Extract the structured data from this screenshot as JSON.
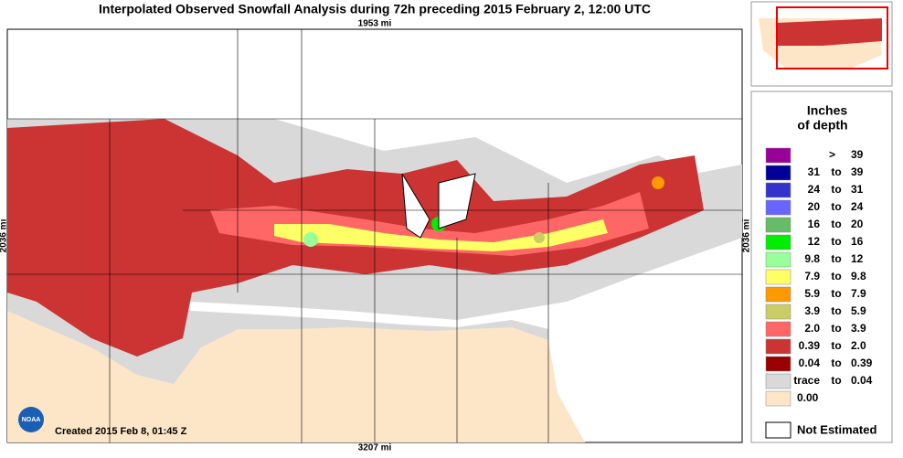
{
  "header": {
    "title": "Interpolated Observed Snowfall Analysis during 72h preceding 2015 February 2, 12:00 UTC"
  },
  "map": {
    "top_scale": "1953 mi",
    "side_scale": "2036 mi",
    "bottom_scale": "3207 mi",
    "created": "Created 2015 Feb 8, 01:45 Z",
    "logo": "NOAA"
  },
  "legend": {
    "title": [
      "Inches",
      "of depth"
    ],
    "items": [
      {
        "color": "#990099",
        "parts": [
          ">",
          "39"
        ]
      },
      {
        "color": "#000099",
        "parts": [
          "31",
          "to",
          "39"
        ]
      },
      {
        "color": "#3333cc",
        "parts": [
          "24",
          "to",
          "31"
        ]
      },
      {
        "color": "#6666ff",
        "parts": [
          "20",
          "to",
          "24"
        ]
      },
      {
        "color": "#66bb66",
        "parts": [
          "16",
          "to",
          "20"
        ]
      },
      {
        "color": "#00ee00",
        "parts": [
          "12",
          "to",
          "16"
        ]
      },
      {
        "color": "#99ff99",
        "parts": [
          "9.8",
          "to",
          "12"
        ]
      },
      {
        "color": "#ffff66",
        "parts": [
          "7.9",
          "to",
          "9.8"
        ]
      },
      {
        "color": "#ff9900",
        "parts": [
          "5.9",
          "to",
          "7.9"
        ]
      },
      {
        "color": "#cccc66",
        "parts": [
          "3.9",
          "to",
          "5.9"
        ]
      },
      {
        "color": "#ff6666",
        "parts": [
          "2.0",
          "to",
          "3.9"
        ]
      },
      {
        "color": "#cc3333",
        "parts": [
          "0.39",
          "to",
          "2.0"
        ]
      },
      {
        "color": "#990000",
        "parts": [
          "0.04",
          "to",
          "0.39"
        ]
      },
      {
        "color": "#d9d9d9",
        "parts": [
          "trace",
          "to",
          "0.04"
        ]
      },
      {
        "color": "#fde6c8",
        "parts": [
          "0.00"
        ]
      }
    ],
    "not_estimated": "Not Estimated"
  }
}
